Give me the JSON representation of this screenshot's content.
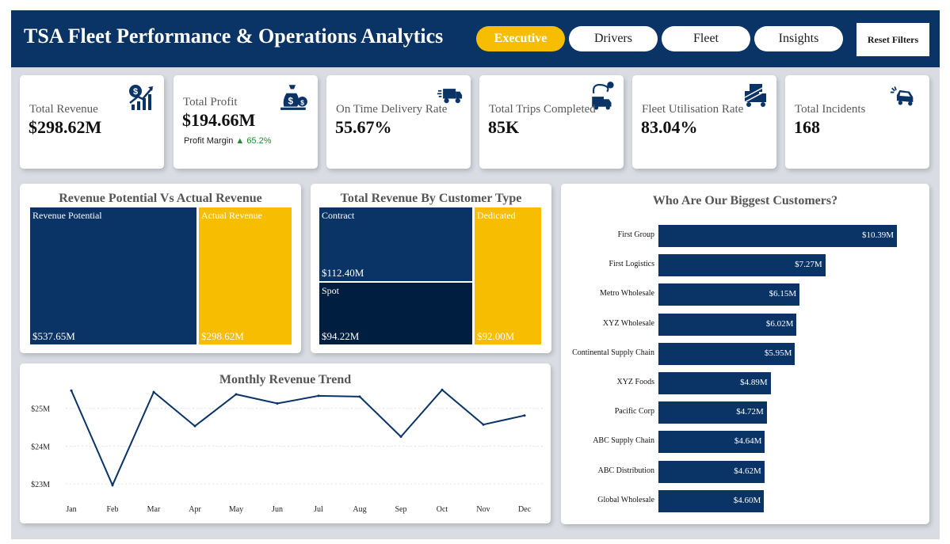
{
  "header": {
    "title": "TSA Fleet Performance & Operations Analytics",
    "tabs": [
      {
        "label": "Executive",
        "active": true
      },
      {
        "label": "Drivers",
        "active": false
      },
      {
        "label": "Fleet",
        "active": false
      },
      {
        "label": "Insights",
        "active": false
      }
    ],
    "reset_label": "Reset Filters"
  },
  "colors": {
    "navy": "#0a3366",
    "dark_navy": "#001f40",
    "gold": "#f7bd00",
    "positive": "#1f8a2e"
  },
  "kpis": [
    {
      "label": "Total Revenue",
      "value": "$298.62M",
      "icon": "revenue-growth-icon"
    },
    {
      "label": "Total Profit",
      "value": "$194.66M",
      "icon": "money-bag-icon",
      "sub_label": "Profit Margin",
      "sub_value": "65.2%"
    },
    {
      "label": "On Time Delivery Rate",
      "value": "55.67%",
      "icon": "delivery-truck-icon"
    },
    {
      "label": "Total Trips Completed",
      "value": "85K",
      "icon": "route-truck-icon"
    },
    {
      "label": "Fleet Utilisation Rate",
      "value": "83.04%",
      "icon": "fleet-trucks-icon"
    },
    {
      "label": "Total Incidents",
      "value": "168",
      "icon": "car-crash-icon"
    }
  ],
  "revenue_potential": {
    "title": "Revenue Potential Vs Actual Revenue",
    "tiles": [
      {
        "label": "Revenue Potential",
        "value": "$537.65M"
      },
      {
        "label": "Actual Revenue",
        "value": "$298.62M"
      }
    ]
  },
  "customer_type": {
    "title": "Total Revenue By Customer Type",
    "tiles": [
      {
        "label": "Contract",
        "value": "$112.40M"
      },
      {
        "label": "Spot",
        "value": "$94.22M"
      },
      {
        "label": "Dedicated",
        "value": "$92.00M"
      }
    ]
  },
  "monthly_trend": {
    "title": "Monthly Revenue Trend",
    "y_ticks": [
      "$25M",
      "$24M",
      "$23M"
    ]
  },
  "customers": {
    "title": "Who Are Our Biggest Customers?"
  },
  "chart_data": [
    {
      "type": "line",
      "title": "Monthly Revenue Trend",
      "categories": [
        "Jan",
        "Feb",
        "Mar",
        "Apr",
        "May",
        "Jun",
        "Jul",
        "Aug",
        "Sep",
        "Oct",
        "Nov",
        "Dec"
      ],
      "values": [
        25.47,
        22.97,
        25.43,
        24.53,
        25.37,
        25.13,
        25.33,
        25.31,
        24.25,
        25.49,
        24.57,
        24.81
      ],
      "ylim": [
        22.9,
        25.6
      ],
      "y_ticks": [
        23,
        24,
        25
      ],
      "grid": true
    },
    {
      "type": "bar",
      "orientation": "horizontal",
      "title": "Who Are Our Biggest Customers?",
      "categories": [
        "First Group",
        "First Logistics",
        "Metro Wholesale",
        "XYZ Wholesale",
        "Continental Supply Chain",
        "XYZ Foods",
        "Pacific Corp",
        "ABC Supply Chain",
        "ABC Distribution",
        "Global Wholesale"
      ],
      "values": [
        10.39,
        7.27,
        6.15,
        6.02,
        5.95,
        4.89,
        4.72,
        4.64,
        4.62,
        4.6
      ],
      "labels": [
        "$10.39M",
        "$7.27M",
        "$6.15M",
        "$6.02M",
        "$5.95M",
        "$4.89M",
        "$4.72M",
        "$4.64M",
        "$4.62M",
        "$4.60M"
      ]
    }
  ]
}
